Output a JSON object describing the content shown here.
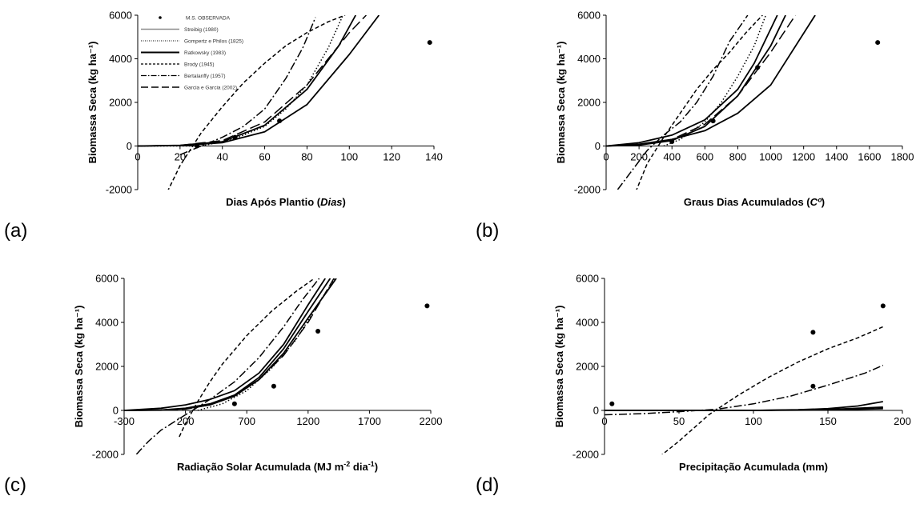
{
  "figure": {
    "style": {
      "series_color": "#000000",
      "axis_color": "#000000",
      "background": "#ffffff"
    },
    "legend": {
      "panel": "a",
      "placement": "top-left",
      "entries": [
        {
          "label": "M.S. OBSERVADA",
          "marker": "dot"
        },
        {
          "label": "Streibig (1980)",
          "line": "solid-gray"
        },
        {
          "label": "Gompertz e Philos (1825)",
          "line": "dotted"
        },
        {
          "label": "Ratkowsky (1983)",
          "line": "solid-thick"
        },
        {
          "label": "Brody (1945)",
          "line": "short-dash"
        },
        {
          "label": "Bertalanffy (1957)",
          "line": "dash-dot"
        },
        {
          "label": "Garcia e Garcia (2002)",
          "line": "long-dash"
        }
      ]
    }
  },
  "chart_data": [
    {
      "panel": "a",
      "panel_label": "(a)",
      "type": "line",
      "xlabel_parts": [
        {
          "text": "Dias Após Plantio ("
        },
        {
          "text": "Dias",
          "italic": true
        },
        {
          "text": ")"
        }
      ],
      "ylabel": "Biomassa Seca (kg ha⁻¹)",
      "xlim": [
        0,
        140
      ],
      "ylim": [
        -2000,
        6000
      ],
      "xticks": [
        0,
        20,
        40,
        60,
        80,
        100,
        120,
        140
      ],
      "yticks": [
        -2000,
        0,
        2000,
        4000,
        6000
      ],
      "grid": false,
      "observed": {
        "x": [
          28,
          46,
          67,
          138
        ],
        "y": [
          0,
          400,
          1150,
          4750
        ]
      },
      "series": [
        {
          "style": "solid",
          "x": [
            0,
            20,
            40,
            60,
            80,
            95,
            103
          ],
          "y": [
            0,
            30,
            200,
            950,
            2600,
            4600,
            6000
          ]
        },
        {
          "style": "solid",
          "x": [
            0,
            20,
            40,
            60,
            80,
            100,
            114
          ],
          "y": [
            0,
            20,
            150,
            650,
            1900,
            4200,
            6000
          ]
        },
        {
          "style": "dotted",
          "x": [
            0,
            30,
            45,
            60,
            70,
            80,
            90,
            97
          ],
          "y": [
            0,
            0,
            300,
            900,
            1700,
            2800,
            4500,
            6000
          ]
        },
        {
          "style": "dashed",
          "x": [
            14,
            20,
            30,
            40,
            50,
            60,
            70,
            80,
            90,
            98
          ],
          "y": [
            -2100,
            -900,
            600,
            1800,
            2900,
            3800,
            4600,
            5200,
            5700,
            6000
          ]
        },
        {
          "style": "dashdot",
          "x": [
            20,
            30,
            40,
            50,
            60,
            70,
            78,
            84
          ],
          "y": [
            -400,
            0,
            400,
            900,
            1700,
            3100,
            4500,
            5900
          ]
        },
        {
          "style": "longdash",
          "x": [
            0,
            20,
            40,
            60,
            80,
            100,
            108
          ],
          "y": [
            0,
            30,
            250,
            1100,
            2800,
            5200,
            6000
          ]
        }
      ]
    },
    {
      "panel": "b",
      "panel_label": "(b)",
      "type": "line",
      "xlabel_parts": [
        {
          "text": "Graus Dias Acumulados ("
        },
        {
          "text": "Cº",
          "italic": true
        },
        {
          "text": ")"
        }
      ],
      "ylabel": "Biomassa Seca (kg ha⁻¹)",
      "xlim": [
        0,
        1800
      ],
      "ylim": [
        -2000,
        6000
      ],
      "xticks": [
        0,
        200,
        400,
        600,
        800,
        1000,
        1200,
        1400,
        1600,
        1800
      ],
      "yticks": [
        -2000,
        0,
        2000,
        4000,
        6000
      ],
      "grid": false,
      "observed": {
        "x": [
          400,
          650,
          920,
          1650
        ],
        "y": [
          200,
          1150,
          3600,
          4750
        ]
      },
      "series": [
        {
          "style": "solid",
          "x": [
            0,
            200,
            400,
            600,
            800,
            1000,
            1270
          ],
          "y": [
            0,
            80,
            300,
            700,
            1500,
            2800,
            6000
          ]
        },
        {
          "style": "solid",
          "x": [
            0,
            200,
            400,
            600,
            800,
            900,
            1040
          ],
          "y": [
            0,
            150,
            500,
            1200,
            2600,
            3800,
            6000
          ]
        },
        {
          "style": "solid",
          "x": [
            0,
            200,
            400,
            600,
            800,
            1000,
            1090
          ],
          "y": [
            0,
            40,
            250,
            900,
            2300,
            4600,
            6000
          ]
        },
        {
          "style": "dotted",
          "x": [
            350,
            450,
            600,
            700,
            800,
            900,
            970
          ],
          "y": [
            0,
            300,
            1100,
            2000,
            3200,
            4600,
            6000
          ]
        },
        {
          "style": "dashed",
          "x": [
            180,
            250,
            350,
            450,
            550,
            650,
            750,
            850,
            950
          ],
          "y": [
            -2100,
            -800,
            400,
            1500,
            2600,
            3500,
            4300,
            5200,
            6000
          ]
        },
        {
          "style": "dashdot",
          "x": [
            70,
            150,
            250,
            350,
            450,
            550,
            650,
            750,
            860
          ],
          "y": [
            -2000,
            -1200,
            -200,
            500,
            1100,
            2000,
            3200,
            4800,
            6000
          ]
        },
        {
          "style": "longdash",
          "x": [
            0,
            200,
            400,
            600,
            800,
            1000,
            1150
          ],
          "y": [
            0,
            50,
            300,
            1000,
            2300,
            4300,
            6000
          ]
        }
      ]
    },
    {
      "panel": "c",
      "panel_label": "(c)",
      "type": "line",
      "xlabel_parts": [
        {
          "text": "Radiação Solar Acumulada (MJ m"
        },
        {
          "text": "-2",
          "sup": true
        },
        {
          "text": " dia"
        },
        {
          "text": "-1",
          "sup": true
        },
        {
          "text": ")"
        }
      ],
      "ylabel": "Biomassa Seca (kg ha⁻¹)",
      "xlim": [
        -300,
        2200
      ],
      "ylim": [
        -2000,
        6000
      ],
      "xticks": [
        -300,
        200,
        700,
        1200,
        1700,
        2200
      ],
      "xtick_labels": [
        "-300",
        "200",
        "700",
        "1200",
        "1700",
        "2200"
      ],
      "yticks": [
        -2000,
        0,
        2000,
        4000,
        6000
      ],
      "grid": false,
      "observed": {
        "x": [
          600,
          920,
          1280,
          2170
        ],
        "y": [
          300,
          1100,
          3600,
          4750
        ]
      },
      "series": [
        {
          "style": "solid",
          "x": [
            -300,
            0,
            200,
            400,
            600,
            800,
            1000,
            1200,
            1340
          ],
          "y": [
            0,
            100,
            250,
            500,
            900,
            1700,
            3000,
            4800,
            6000
          ]
        },
        {
          "style": "solid",
          "x": [
            -300,
            0,
            200,
            400,
            600,
            800,
            1000,
            1200,
            1380
          ],
          "y": [
            0,
            20,
            100,
            300,
            700,
            1500,
            2800,
            4500,
            6000
          ]
        },
        {
          "style": "solid",
          "x": [
            -300,
            0,
            200,
            400,
            600,
            800,
            1000,
            1200,
            1430
          ],
          "y": [
            0,
            10,
            80,
            250,
            650,
            1400,
            2600,
            4200,
            6000
          ]
        },
        {
          "style": "dotted",
          "x": [
            300,
            500,
            700,
            900,
            1100,
            1300,
            1420
          ],
          "y": [
            0,
            300,
            900,
            1900,
            3200,
            5000,
            6000
          ]
        },
        {
          "style": "dashed",
          "x": [
            150,
            200,
            300,
            400,
            500,
            700,
            900,
            1100,
            1250
          ],
          "y": [
            -1200,
            -600,
            400,
            1300,
            2100,
            3400,
            4500,
            5400,
            6000
          ]
        },
        {
          "style": "dashdot",
          "x": [
            -200,
            -100,
            0,
            200,
            400,
            600,
            800,
            1000,
            1150,
            1290
          ],
          "y": [
            -2000,
            -1400,
            -900,
            -200,
            500,
            1300,
            2400,
            3800,
            5000,
            6000
          ]
        },
        {
          "style": "longdash",
          "x": [
            -300,
            0,
            200,
            400,
            600,
            800,
            1000,
            1200,
            1410
          ],
          "y": [
            0,
            10,
            60,
            250,
            700,
            1400,
            2500,
            4000,
            6000
          ]
        }
      ]
    },
    {
      "panel": "d",
      "panel_label": "(d)",
      "type": "line",
      "xlabel_parts": [
        {
          "text": "Precipitação Acumulada (mm)"
        }
      ],
      "ylabel": "Biomassa Seca (kg ha⁻¹)",
      "xlim": [
        0,
        200
      ],
      "ylim": [
        -2000,
        6000
      ],
      "xticks": [
        0,
        50,
        100,
        150,
        200
      ],
      "yticks": [
        -2000,
        0,
        2000,
        4000,
        6000
      ],
      "grid": false,
      "observed": {
        "x": [
          5,
          140,
          140,
          187
        ],
        "y": [
          300,
          3550,
          1100,
          4750
        ]
      },
      "series": [
        {
          "style": "solid",
          "x": [
            0,
            50,
            100,
            130,
            150,
            170,
            187
          ],
          "y": [
            0,
            0,
            0,
            30,
            80,
            200,
            400
          ]
        },
        {
          "style": "solid",
          "x": [
            0,
            100,
            150,
            187
          ],
          "y": [
            0,
            0,
            40,
            150
          ]
        },
        {
          "style": "solid",
          "x": [
            0,
            100,
            150,
            187
          ],
          "y": [
            0,
            0,
            20,
            80
          ]
        },
        {
          "style": "dashed",
          "x": [
            37,
            50,
            70,
            90,
            110,
            130,
            150,
            170,
            187
          ],
          "y": [
            -2100,
            -1400,
            -200,
            700,
            1500,
            2200,
            2800,
            3300,
            3800
          ]
        },
        {
          "style": "dashdot",
          "x": [
            0,
            25,
            50,
            75,
            100,
            125,
            150,
            175,
            187
          ],
          "y": [
            -200,
            -150,
            -60,
            50,
            300,
            650,
            1150,
            1700,
            2050
          ]
        },
        {
          "style": "longdash",
          "x": [
            0,
            100,
            150,
            187
          ],
          "y": [
            0,
            0,
            30,
            120
          ]
        }
      ]
    }
  ]
}
